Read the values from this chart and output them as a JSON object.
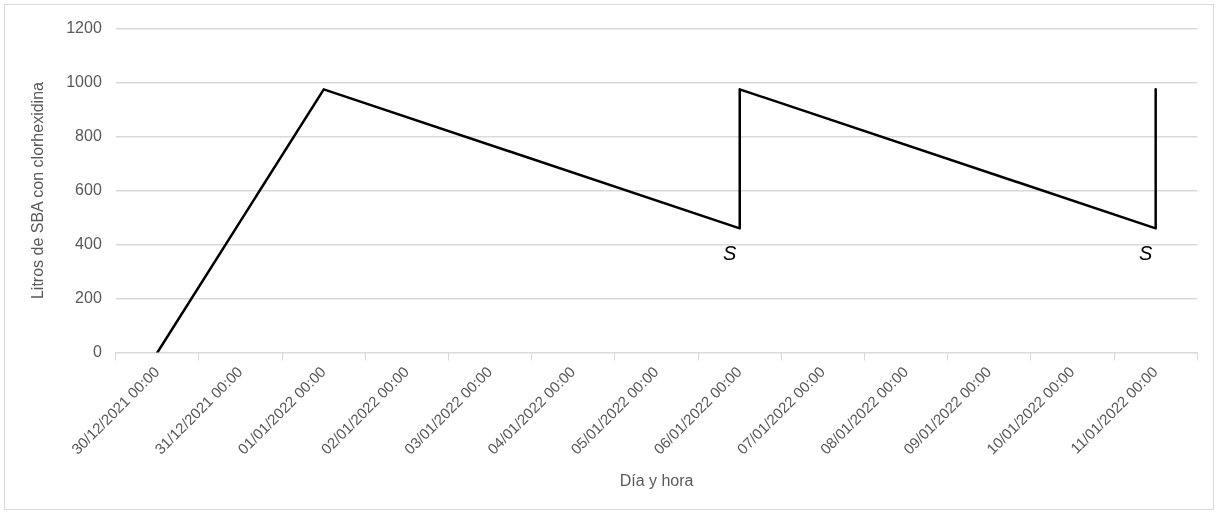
{
  "chart_data": {
    "type": "line",
    "xlabel": "Día y hora",
    "ylabel": "Litros de SBA con clorhexidina",
    "series": [
      {
        "color": "#000000",
        "x": [
          "2021-12-30T00:00",
          "2022-01-01T00:00",
          "2022-01-06T00:00",
          "2022-01-06T00:00",
          "2022-01-11T00:00",
          "2022-01-11T00:00"
        ],
        "values": [
          0,
          975,
          460,
          975,
          460,
          975
        ]
      }
    ],
    "xlim": [
      "2021-12-29T12:00",
      "2022-01-11T12:00"
    ],
    "xticks": [
      {
        "value": "2021-12-29T12:00",
        "label": null
      },
      {
        "value": "2021-12-30T00:00",
        "label": "30/12/2021 00:00"
      },
      {
        "value": "2021-12-30T12:00",
        "label": null
      },
      {
        "value": "2021-12-31T00:00",
        "label": "31/12/2021 00:00"
      },
      {
        "value": "2021-12-31T12:00",
        "label": null
      },
      {
        "value": "2022-01-01T00:00",
        "label": "01/01/2022 00:00"
      },
      {
        "value": "2022-01-01T12:00",
        "label": null
      },
      {
        "value": "2022-01-02T00:00",
        "label": "02/01/2022 00:00"
      },
      {
        "value": "2022-01-02T12:00",
        "label": null
      },
      {
        "value": "2022-01-03T00:00",
        "label": "03/01/2022 00:00"
      },
      {
        "value": "2022-01-03T12:00",
        "label": null
      },
      {
        "value": "2022-01-04T00:00",
        "label": "04/01/2022 00:00"
      },
      {
        "value": "2022-01-04T12:00",
        "label": null
      },
      {
        "value": "2022-01-05T00:00",
        "label": "05/01/2022 00:00"
      },
      {
        "value": "2022-01-05T12:00",
        "label": null
      },
      {
        "value": "2022-01-06T00:00",
        "label": "06/01/2022 00:00"
      },
      {
        "value": "2022-01-06T12:00",
        "label": null
      },
      {
        "value": "2022-01-07T00:00",
        "label": "07/01/2022 00:00"
      },
      {
        "value": "2022-01-07T12:00",
        "label": null
      },
      {
        "value": "2022-01-08T00:00",
        "label": "08/01/2022 00:00"
      },
      {
        "value": "2022-01-08T12:00",
        "label": null
      },
      {
        "value": "2022-01-09T00:00",
        "label": "09/01/2022 00:00"
      },
      {
        "value": "2022-01-09T12:00",
        "label": null
      },
      {
        "value": "2022-01-10T00:00",
        "label": "10/01/2022 00:00"
      },
      {
        "value": "2022-01-10T12:00",
        "label": null
      },
      {
        "value": "2022-01-11T00:00",
        "label": "11/01/2022 00:00"
      },
      {
        "value": "2022-01-11T12:00",
        "label": null
      }
    ],
    "ylim": [
      0,
      1200
    ],
    "yticks": [
      0,
      200,
      400,
      600,
      800,
      1000,
      1200
    ],
    "grid": "y",
    "legend": false,
    "marker": "none",
    "line_style": "solid",
    "annotations": [
      {
        "text": "S",
        "x": "2022-01-06T00:00",
        "y": 460
      },
      {
        "text": "S",
        "x": "2022-01-11T00:00",
        "y": 460
      }
    ]
  }
}
